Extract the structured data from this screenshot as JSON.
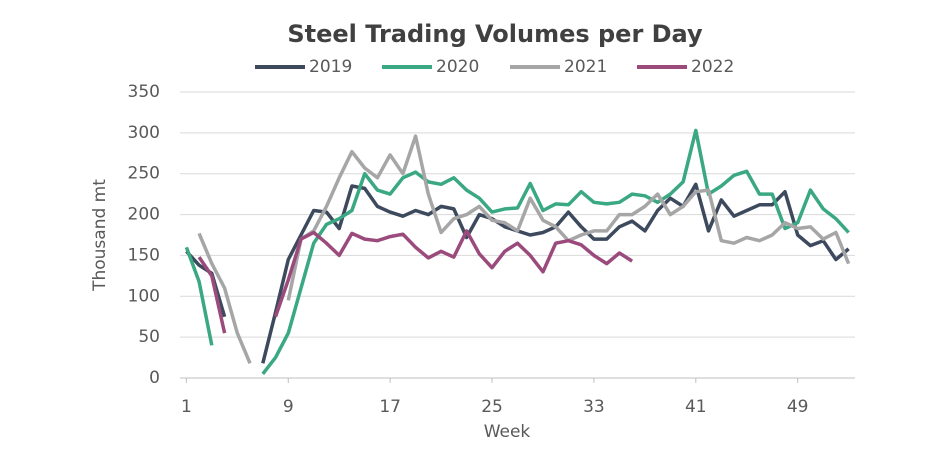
{
  "chart_data": {
    "type": "line",
    "title": "Steel Trading Volumes per Day",
    "x_label": "Week",
    "y_label": "Thousand mt",
    "x": [
      1,
      2,
      3,
      4,
      5,
      6,
      7,
      8,
      9,
      10,
      11,
      12,
      13,
      14,
      15,
      16,
      17,
      18,
      19,
      20,
      21,
      22,
      23,
      24,
      25,
      26,
      27,
      28,
      29,
      30,
      31,
      32,
      33,
      34,
      35,
      36,
      37,
      38,
      39,
      40,
      41,
      42,
      43,
      44,
      45,
      46,
      47,
      48,
      49,
      50,
      51,
      52,
      53
    ],
    "series": [
      {
        "name": "2019",
        "color": "#3d4a5e",
        "values": [
          155,
          138,
          128,
          75,
          null,
          null,
          18,
          80,
          145,
          175,
          205,
          203,
          183,
          235,
          232,
          210,
          203,
          198,
          205,
          200,
          210,
          207,
          172,
          200,
          195,
          185,
          180,
          175,
          178,
          185,
          203,
          185,
          170,
          170,
          185,
          192,
          180,
          205,
          220,
          210,
          237,
          180,
          218,
          198,
          205,
          212,
          212,
          228,
          175,
          162,
          168,
          145,
          158
        ]
      },
      {
        "name": "2020",
        "color": "#3aa882",
        "values": [
          160,
          118,
          40,
          null,
          null,
          null,
          5,
          25,
          55,
          110,
          165,
          188,
          195,
          205,
          250,
          230,
          225,
          245,
          252,
          240,
          237,
          245,
          230,
          220,
          203,
          207,
          208,
          238,
          205,
          213,
          212,
          228,
          215,
          213,
          215,
          225,
          223,
          215,
          225,
          240,
          303,
          225,
          235,
          248,
          253,
          225,
          225,
          183,
          190,
          230,
          207,
          195,
          178
        ]
      },
      {
        "name": "2021",
        "color": "#a6a6a6",
        "values": [
          null,
          177,
          140,
          110,
          55,
          18,
          null,
          null,
          95,
          170,
          180,
          210,
          245,
          277,
          257,
          245,
          273,
          250,
          296,
          225,
          178,
          195,
          200,
          210,
          193,
          190,
          180,
          220,
          193,
          185,
          168,
          175,
          180,
          180,
          200,
          200,
          210,
          225,
          200,
          210,
          228,
          230,
          168,
          165,
          172,
          168,
          175,
          190,
          183,
          185,
          170,
          178,
          140
        ]
      },
      {
        "name": "2022",
        "color": "#9b4a7c",
        "values": [
          null,
          148,
          125,
          55,
          null,
          null,
          null,
          75,
          120,
          170,
          178,
          165,
          150,
          177,
          170,
          168,
          173,
          176,
          160,
          147,
          155,
          148,
          180,
          152,
          135,
          155,
          165,
          150,
          130,
          165,
          168,
          163,
          150,
          140,
          153,
          143,
          null,
          null,
          null,
          null,
          null,
          null,
          null,
          null,
          null,
          null,
          null,
          null,
          null,
          null,
          null,
          null,
          null
        ]
      }
    ],
    "xlim": [
      0.5,
      53.5
    ],
    "xticks": [
      1,
      9,
      17,
      25,
      33,
      41,
      49
    ],
    "ylim": [
      0,
      350
    ],
    "yticks": [
      0,
      50,
      100,
      150,
      200,
      250,
      300,
      350
    ],
    "grid": true,
    "legend": "top"
  }
}
